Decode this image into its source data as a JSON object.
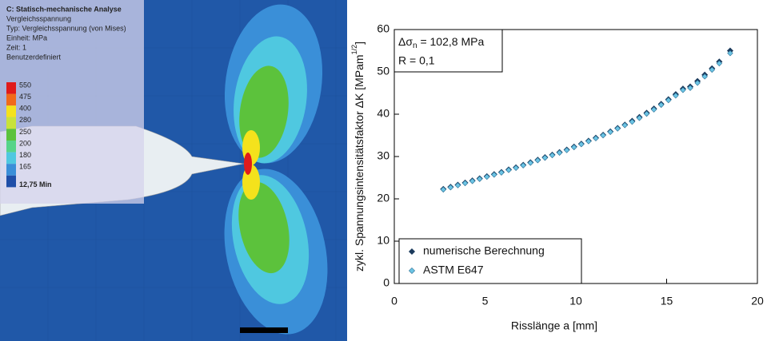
{
  "fem_panel": {
    "title": "C: Statisch-mechanische Analyse",
    "lines": [
      "Vergleichsspannung",
      "Typ: Vergleichsspannung (von Mises)",
      "Einheit: MPa",
      "Zeit: 1",
      "Benutzerdefiniert"
    ],
    "legend": [
      {
        "label": "550",
        "color": "#e01b1b"
      },
      {
        "label": "475",
        "color": "#f06a1a"
      },
      {
        "label": "400",
        "color": "#f4e21c"
      },
      {
        "label": "280",
        "color": "#c8e23a"
      },
      {
        "label": "250",
        "color": "#5cc23c"
      },
      {
        "label": "200",
        "color": "#56d48a"
      },
      {
        "label": "180",
        "color": "#4fc8e0"
      },
      {
        "label": "165",
        "color": "#3a8fd8"
      },
      {
        "label": "12,75 Min",
        "color": "#1f4fa8"
      }
    ]
  },
  "chart_data": {
    "type": "scatter",
    "xlabel": "Risslänge a [mm]",
    "ylabel": {
      "text": "zykl. Spannungsintensitätsfaktor ΔK [MPam",
      "sup": "1/2",
      "end": "]"
    },
    "annotation": {
      "symbol": "Δσ",
      "sub": "n",
      "text": " = 102,8 MPa",
      "line2": "R = 0,1"
    },
    "xlim": [
      0,
      20
    ],
    "xticks": [
      0,
      5,
      10,
      15,
      20
    ],
    "ylim": [
      0,
      60
    ],
    "yticks": [
      0,
      10,
      20,
      30,
      40,
      50,
      60
    ],
    "legend": "lower left",
    "x": [
      2.7,
      3.1,
      3.5,
      3.9,
      4.3,
      4.7,
      5.1,
      5.5,
      5.9,
      6.3,
      6.7,
      7.1,
      7.5,
      7.9,
      8.3,
      8.7,
      9.1,
      9.5,
      9.9,
      10.3,
      10.7,
      11.1,
      11.5,
      11.9,
      12.3,
      12.7,
      13.1,
      13.5,
      13.9,
      14.3,
      14.7,
      15.1,
      15.5,
      15.9,
      16.3,
      16.7,
      17.1,
      17.5,
      17.9,
      18.5
    ],
    "series": [
      {
        "name": "numerische Berechnung",
        "color": "#1b3a5c",
        "values": [
          22.3,
          22.8,
          23.3,
          23.8,
          24.3,
          24.8,
          25.3,
          25.8,
          26.3,
          26.9,
          27.4,
          28.0,
          28.6,
          29.2,
          29.8,
          30.4,
          31.0,
          31.6,
          32.3,
          33.0,
          33.7,
          34.4,
          35.1,
          35.9,
          36.7,
          37.5,
          38.4,
          39.3,
          40.3,
          41.3,
          42.4,
          43.5,
          44.7,
          46.0,
          46.5,
          47.8,
          49.3,
          50.8,
          52.4,
          55.0
        ]
      },
      {
        "name": "ASTM E647",
        "color": "#6cc4e4",
        "values": [
          22.2,
          22.7,
          23.2,
          23.7,
          24.2,
          24.7,
          25.2,
          25.7,
          26.2,
          26.8,
          27.3,
          27.9,
          28.5,
          29.1,
          29.7,
          30.3,
          30.9,
          31.5,
          32.2,
          32.9,
          33.6,
          34.3,
          35.0,
          35.8,
          36.6,
          37.4,
          38.2,
          39.1,
          40.1,
          41.1,
          42.2,
          43.3,
          44.4,
          45.7,
          46.2,
          47.4,
          48.9,
          50.5,
          52.0,
          54.4
        ]
      }
    ]
  }
}
